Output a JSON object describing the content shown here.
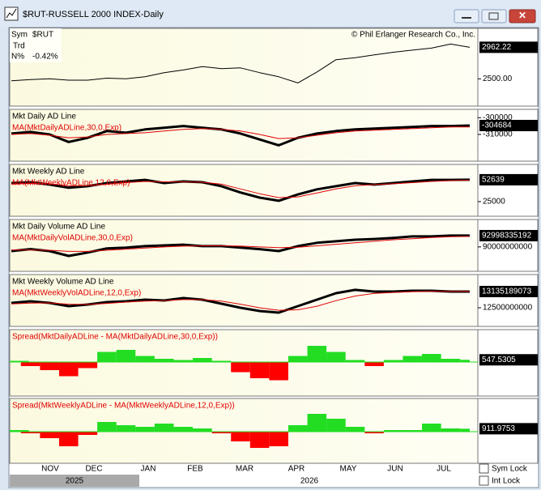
{
  "window": {
    "title": "$RUT-RUSSELL 2000 INDEX-Daily"
  },
  "info": {
    "sym_label": "Sym",
    "sym": "$RUT",
    "trd_label": "Trd",
    "n_label": "N%",
    "n_value": "-0.42%"
  },
  "copyright": "© Phil Erlanger Research Co., Inc.",
  "x_axis": {
    "months": [
      "NOV",
      "DEC",
      "JAN",
      "FEB",
      "MAR",
      "APR",
      "MAY",
      "JUN",
      "JUL"
    ],
    "years": [
      "2025",
      "2026"
    ]
  },
  "checkboxes": [
    "Sym Lock",
    "Int Lock"
  ],
  "chart_data": [
    {
      "type": "line",
      "ylim": [
        2100,
        3240
      ],
      "yticks": [
        {
          "value": 2500,
          "label": "2500.00"
        }
      ],
      "series": [
        {
          "color": "#000000",
          "values": [
            2470,
            2490,
            2500,
            2480,
            2480,
            2510,
            2500,
            2530,
            2590,
            2630,
            2680,
            2650,
            2660,
            2590,
            2530,
            2440,
            2600,
            2780,
            2810,
            2850,
            2890,
            2920,
            2950,
            3010,
            2962.22
          ]
        }
      ]
    },
    {
      "type": "line",
      "ylim": [
        -326000,
        -295000
      ],
      "yticks": [
        -300000,
        -310000
      ],
      "series": [
        {
          "name": "Mkt Daily AD Line",
          "color": "#000000",
          "values": [
            -309500,
            -308500,
            -310000,
            -314500,
            -312000,
            -308000,
            -309000,
            -307000,
            -306000,
            -305000,
            -306000,
            -307000,
            -309500,
            -313000,
            -316500,
            -312000,
            -309500,
            -308000,
            -307000,
            -306500,
            -306000,
            -305500,
            -305000,
            -305000,
            -304684
          ]
        },
        {
          "name": "MA(MktDailyADLine,30,0,Exp)",
          "color": "#e00000",
          "values": [
            -310000,
            -309500,
            -310500,
            -312000,
            -311500,
            -310000,
            -309500,
            -309000,
            -308000,
            -307000,
            -306500,
            -307000,
            -308000,
            -310000,
            -312500,
            -312000,
            -310500,
            -309000,
            -308000,
            -307500,
            -307000,
            -306500,
            -306000,
            -305500,
            -305500
          ]
        }
      ]
    },
    {
      "type": "line",
      "ylim": [
        6500,
        72000
      ],
      "yticks": [
        25000
      ],
      "series": [
        {
          "name": "Mkt Weekly AD Line",
          "color": "#000000",
          "values": [
            48500,
            49500,
            46500,
            42500,
            44500,
            48500,
            50500,
            52500,
            48500,
            50500,
            49500,
            44500,
            36500,
            30000,
            26000,
            34000,
            40500,
            44500,
            48500,
            46500,
            48500,
            50500,
            52500,
            52500,
            52639
          ]
        },
        {
          "name": "MA(MktWeeklyADLine,12,0,Exp)",
          "color": "#e00000",
          "values": [
            47000,
            48000,
            47500,
            45000,
            45000,
            47000,
            49000,
            50500,
            50000,
            50000,
            49500,
            47000,
            41000,
            35000,
            30000,
            31000,
            36000,
            41000,
            45000,
            46500,
            47500,
            49000,
            50500,
            51500,
            52000
          ]
        }
      ]
    },
    {
      "type": "line",
      "ylim": [
        83500000000,
        97300000000
      ],
      "yticks": [
        90000000000
      ],
      "series": [
        {
          "name": "Mkt Daily Volume AD Line",
          "color": "#000000",
          "values": [
            88900000000,
            89400000000,
            88900000000,
            87600000000,
            88500000000,
            89600000000,
            89800000000,
            90200000000,
            90400000000,
            90600000000,
            90200000000,
            90200000000,
            89800000000,
            89400000000,
            88900000000,
            90200000000,
            91100000000,
            91500000000,
            91900000000,
            92100000000,
            92400000000,
            92800000000,
            92800000000,
            93000000000,
            92998335192
          ]
        },
        {
          "name": "MA(MktDailyVolADLine,30,0,Exp)",
          "color": "#e00000",
          "values": [
            89200000000,
            89200000000,
            89100000000,
            88800000000,
            88800000000,
            89100000000,
            89400000000,
            89700000000,
            90000000000,
            90200000000,
            90300000000,
            90300000000,
            90200000000,
            90000000000,
            89800000000,
            89900000000,
            90300000000,
            90700000000,
            91100000000,
            91500000000,
            91900000000,
            92200000000,
            92500000000,
            92700000000,
            92800000000
          ]
        }
      ]
    },
    {
      "type": "line",
      "ylim": [
        11770000000,
        13800000000
      ],
      "yticks": [
        12500000000
      ],
      "series": [
        {
          "name": "Mkt Weekly Volume AD Line",
          "color": "#000000",
          "values": [
            12690000000,
            12754000000,
            12690000000,
            12564000000,
            12627000000,
            12722000000,
            12754000000,
            12818000000,
            12786000000,
            12881000000,
            12818000000,
            12659000000,
            12500000000,
            12373000000,
            12309000000,
            12564000000,
            12818000000,
            13072000000,
            13199000000,
            13135000000,
            13135000000,
            13167000000,
            13167000000,
            13135000000,
            13135189073
          ]
        },
        {
          "name": "MA(MktWeeklyVolADLine,12,0,Exp)",
          "color": "#e00000",
          "values": [
            12650000000,
            12680000000,
            12690000000,
            12640000000,
            12630000000,
            12670000000,
            12720000000,
            12760000000,
            12780000000,
            12820000000,
            12820000000,
            12760000000,
            12640000000,
            12500000000,
            12400000000,
            12420000000,
            12560000000,
            12780000000,
            12960000000,
            13060000000,
            13100000000,
            13130000000,
            13140000000,
            13140000000,
            13140000000
          ]
        }
      ]
    },
    {
      "type": "bar",
      "ylim": [
        -8400,
        8000
      ],
      "up_color": "#22dd22",
      "down_color": "#ff0000",
      "series": [
        {
          "name": "Spread(MktDailyADLine - MA(MktDailyADLine,30,0,Exp))",
          "color": "#e00000",
          "values": [
            300,
            -1000,
            -2000,
            -3500,
            -1500,
            2500,
            3000,
            1500,
            800,
            500,
            1000,
            300,
            -2500,
            -4000,
            -4500,
            1500,
            4000,
            2500,
            500,
            -1000,
            500,
            1500,
            2000,
            800,
            547.5305
          ]
        }
      ]
    },
    {
      "type": "bar",
      "ylim": [
        -9750,
        10250
      ],
      "up_color": "#22dd22",
      "down_color": "#ff0000",
      "series": [
        {
          "name": "Spread(MktWeeklyADLine - MA(MktWeeklyADLine,12,0,Exp))",
          "color": "#e00000",
          "values": [
            500,
            -500,
            -2000,
            -4500,
            -1000,
            3000,
            2000,
            1500,
            2500,
            1500,
            1000,
            -500,
            -3000,
            -5000,
            -4500,
            2000,
            5500,
            4000,
            1500,
            -500,
            500,
            500,
            2500,
            1000,
            911.9753
          ]
        }
      ]
    }
  ]
}
